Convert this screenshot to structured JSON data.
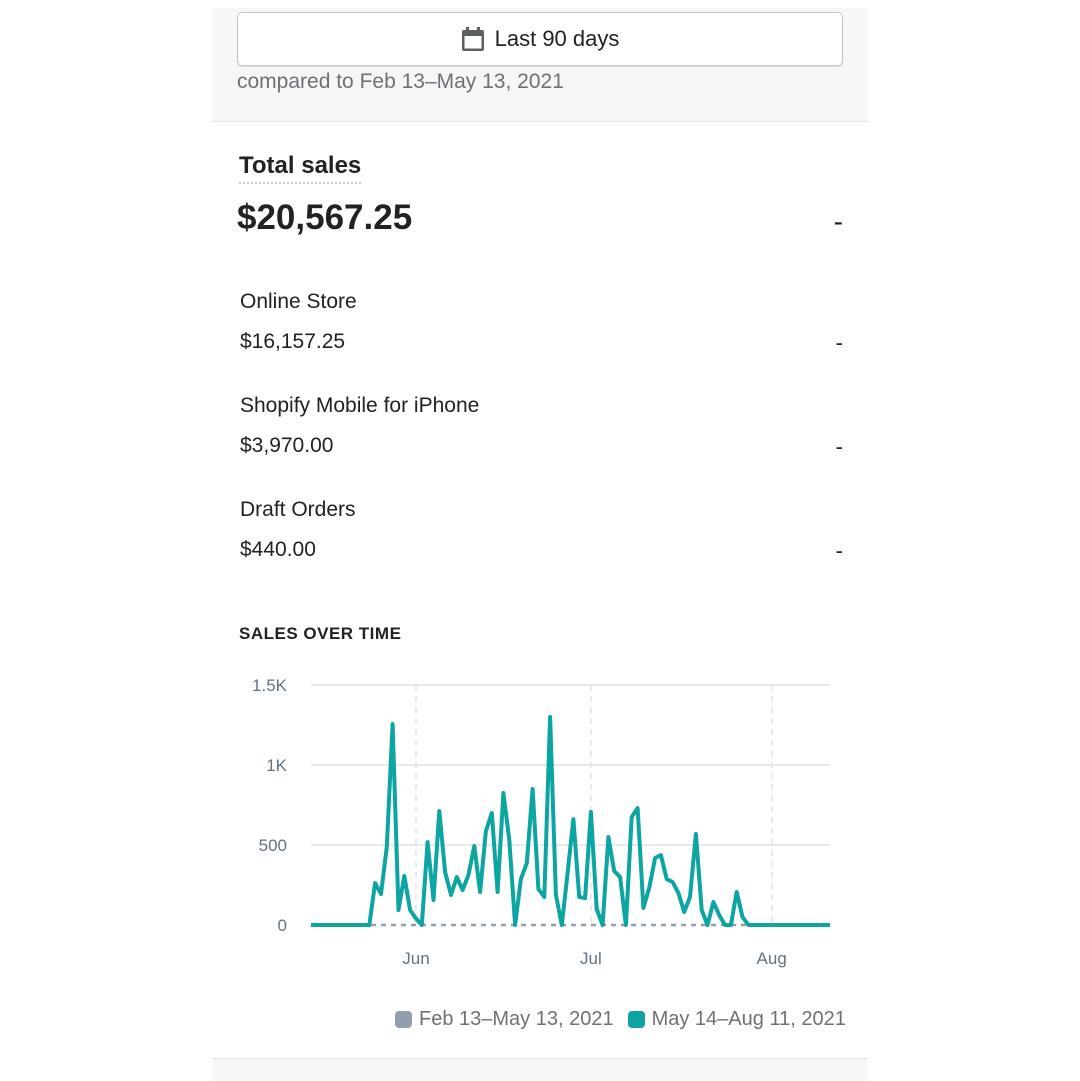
{
  "header": {
    "date_range_label": "Last 90 days",
    "comparison_text": "compared to Feb 13–May 13, 2021"
  },
  "summary": {
    "title": "Total sales",
    "total": "$20,567.25",
    "total_change": "-",
    "channels": [
      {
        "name": "Online Store",
        "value": "$16,157.25",
        "change": "-"
      },
      {
        "name": "Shopify Mobile for iPhone",
        "value": "$3,970.00",
        "change": "-"
      },
      {
        "name": "Draft Orders",
        "value": "$440.00",
        "change": "-"
      }
    ]
  },
  "chart_section_title": "SALES OVER TIME",
  "colors": {
    "current": "#0ca5a1",
    "previous": "#919eab"
  },
  "chart_data": {
    "type": "line",
    "ylim": [
      0,
      1500
    ],
    "yticks": [
      {
        "value": 0,
        "label": "0"
      },
      {
        "value": 500,
        "label": "500"
      },
      {
        "value": 1000,
        "label": "1K"
      },
      {
        "value": 1500,
        "label": "1.5K"
      }
    ],
    "xticks": [
      {
        "date": "2021-06-01",
        "label": "Jun"
      },
      {
        "date": "2021-07-01",
        "label": "Jul"
      },
      {
        "date": "2021-08-01",
        "label": "Aug"
      }
    ],
    "grid": true,
    "legend_position": "bottom",
    "x": [
      "2021-05-14",
      "2021-05-15",
      "2021-05-16",
      "2021-05-17",
      "2021-05-18",
      "2021-05-19",
      "2021-05-20",
      "2021-05-21",
      "2021-05-22",
      "2021-05-23",
      "2021-05-24",
      "2021-05-25",
      "2021-05-26",
      "2021-05-27",
      "2021-05-28",
      "2021-05-29",
      "2021-05-30",
      "2021-05-31",
      "2021-06-01",
      "2021-06-02",
      "2021-06-03",
      "2021-06-04",
      "2021-06-05",
      "2021-06-06",
      "2021-06-07",
      "2021-06-08",
      "2021-06-09",
      "2021-06-10",
      "2021-06-11",
      "2021-06-12",
      "2021-06-13",
      "2021-06-14",
      "2021-06-15",
      "2021-06-16",
      "2021-06-17",
      "2021-06-18",
      "2021-06-19",
      "2021-06-20",
      "2021-06-21",
      "2021-06-22",
      "2021-06-23",
      "2021-06-24",
      "2021-06-25",
      "2021-06-26",
      "2021-06-27",
      "2021-06-28",
      "2021-06-29",
      "2021-06-30",
      "2021-07-01",
      "2021-07-02",
      "2021-07-03",
      "2021-07-04",
      "2021-07-05",
      "2021-07-06",
      "2021-07-07",
      "2021-07-08",
      "2021-07-09",
      "2021-07-10",
      "2021-07-11",
      "2021-07-12",
      "2021-07-13",
      "2021-07-14",
      "2021-07-15",
      "2021-07-16",
      "2021-07-17",
      "2021-07-18",
      "2021-07-19",
      "2021-07-20",
      "2021-07-21",
      "2021-07-22",
      "2021-07-23",
      "2021-07-24",
      "2021-07-25",
      "2021-07-26",
      "2021-07-27",
      "2021-07-28",
      "2021-07-29",
      "2021-07-30",
      "2021-07-31",
      "2021-08-01",
      "2021-08-02",
      "2021-08-03",
      "2021-08-04",
      "2021-08-05",
      "2021-08-06",
      "2021-08-07",
      "2021-08-08",
      "2021-08-09",
      "2021-08-10",
      "2021-08-11"
    ],
    "series": [
      {
        "name": "Feb 13–May 13, 2021",
        "style": "dashed",
        "values": [
          0,
          0,
          0,
          0,
          0,
          0,
          0,
          0,
          0,
          0,
          0,
          0,
          0,
          0,
          0,
          0,
          0,
          0,
          0,
          0,
          0,
          0,
          0,
          0,
          0,
          0,
          0,
          0,
          0,
          0,
          0,
          0,
          0,
          0,
          0,
          0,
          0,
          0,
          0,
          0,
          0,
          0,
          0,
          0,
          0,
          0,
          0,
          0,
          0,
          0,
          0,
          0,
          0,
          0,
          0,
          0,
          0,
          0,
          0,
          0,
          0,
          0,
          0,
          0,
          0,
          0,
          0,
          0,
          0,
          0,
          0,
          0,
          0,
          0,
          0,
          0,
          0,
          0,
          0,
          0,
          0,
          0,
          0,
          0,
          0,
          0,
          0,
          0,
          0,
          0
        ]
      },
      {
        "name": "May 14–Aug 11, 2021",
        "style": "solid",
        "values": [
          0,
          0,
          0,
          0,
          0,
          0,
          0,
          0,
          0,
          0,
          0,
          262,
          194,
          488,
          1256,
          94,
          306,
          94,
          40,
          0,
          518,
          156,
          712,
          331,
          188,
          300,
          219,
          312,
          494,
          206,
          587,
          700,
          206,
          825,
          531,
          0,
          287,
          387,
          850,
          225,
          175,
          1300,
          188,
          0,
          325,
          662,
          175,
          169,
          706,
          100,
          0,
          550,
          337,
          300,
          0,
          675,
          731,
          106,
          231,
          419,
          437,
          287,
          269,
          200,
          81,
          175,
          569,
          94,
          0,
          144,
          62,
          0,
          0,
          206,
          50,
          0,
          0,
          0,
          0,
          0,
          0,
          0,
          0,
          0,
          0,
          0,
          0,
          0,
          0,
          0
        ]
      }
    ]
  }
}
